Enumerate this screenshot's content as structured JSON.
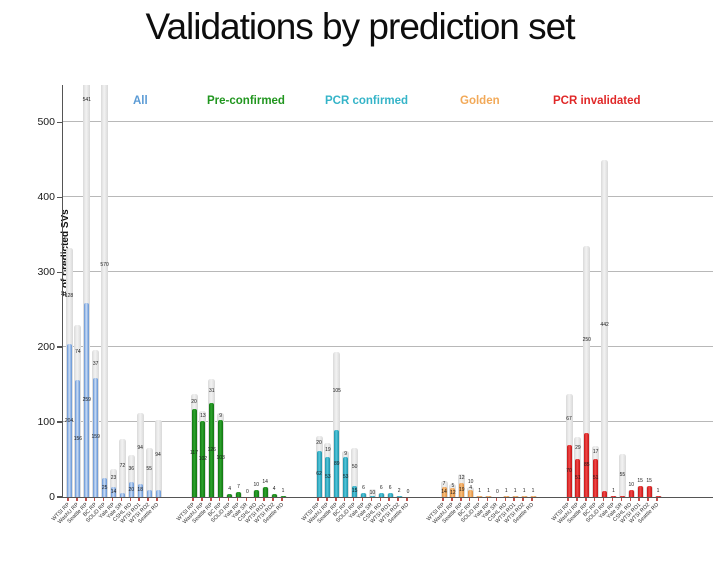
{
  "slide": {
    "title": "Validations by prediction set"
  },
  "chart_data": {
    "type": "bar",
    "stacked": true,
    "grouped_by": "prediction set",
    "title": "Validations by prediction set",
    "xlabel": "",
    "ylabel": "# of predicted SVs",
    "ylim": [
      0,
      550
    ],
    "yticks": [
      0,
      100,
      200,
      300,
      400,
      500
    ],
    "grid": true,
    "legend_position": "top",
    "gray_segment_colors": {
      "edge": "#d9d9d9",
      "center": "#f2f2f2"
    },
    "categories": [
      "WTSI RP",
      "WashU RP",
      "Seattle RP",
      "BC RP",
      "SOLiD RP",
      "Yale RP",
      "Yale SR",
      "CSHL RD",
      "WTSI RD1",
      "WTSI RD2",
      "Seattle RD"
    ],
    "series": [
      {
        "name": "All",
        "color": "#5b9bd5",
        "color_dark": "#6292d4",
        "color_light": "#c9dcf5",
        "values": [
          204,
          156,
          259,
          159,
          25,
          14,
          5,
          20,
          18,
          10,
          9
        ],
        "gray_values": [
          128,
          74,
          541,
          37,
          570,
          23,
          72,
          36,
          94,
          55,
          94
        ]
      },
      {
        "name": "Pre-confirmed",
        "color": "#21961f",
        "color_dark": "#117511",
        "color_light": "#2da32d",
        "values": [
          117,
          102,
          126,
          103,
          4,
          7,
          0,
          10,
          14,
          4,
          1
        ],
        "gray_values": [
          20,
          13,
          31,
          9,
          0,
          0,
          0,
          0,
          0,
          0,
          0
        ]
      },
      {
        "name": "PCR confirmed",
        "color": "#35b4c8",
        "color_dark": "#1d92aa",
        "color_light": "#52c6da",
        "values": [
          62,
          53,
          89,
          53,
          15,
          6,
          1,
          6,
          6,
          2,
          0
        ],
        "gray_values": [
          20,
          19,
          105,
          9,
          50,
          0,
          10,
          0,
          0,
          0,
          0
        ]
      },
      {
        "name": "Golden",
        "color": "#f2a958",
        "color_dark": "#e08c3c",
        "color_light": "#f8c080",
        "values": [
          14,
          12,
          19,
          10,
          1,
          1,
          0,
          1,
          1,
          1,
          1
        ],
        "gray_values": [
          7,
          5,
          12,
          4,
          0,
          0,
          0,
          0,
          0,
          0,
          0
        ]
      },
      {
        "name": "PCR invalidated",
        "color": "#e02828",
        "color_dark": "#c51414",
        "color_light": "#f14848",
        "values": [
          70,
          51,
          85,
          51,
          8,
          1,
          2,
          10,
          15,
          15,
          1
        ],
        "gray_values": [
          67,
          29,
          250,
          17,
          442,
          0,
          55,
          0,
          0,
          0,
          0
        ]
      }
    ]
  }
}
